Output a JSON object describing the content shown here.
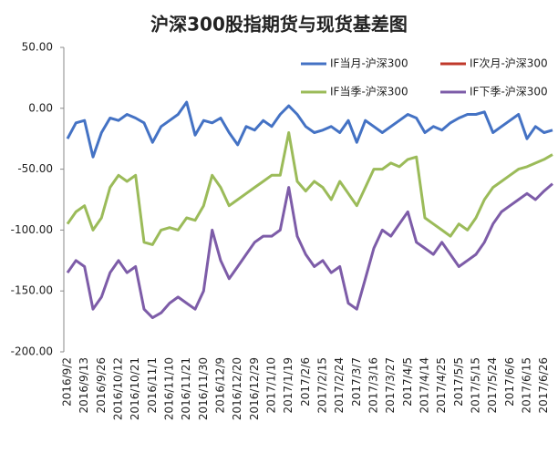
{
  "chart_data": {
    "type": "line",
    "title": "沪深300股指期货与现货基差图",
    "categories": [
      "2016/9/2",
      null,
      "2016/9/13",
      null,
      "2016/9/26",
      null,
      "2016/10/12",
      null,
      "2016/10/21",
      null,
      "2016/11/1",
      null,
      "2016/11/10",
      null,
      "2016/11/21",
      null,
      "2016/11/30",
      null,
      "2016/12/9",
      null,
      "2016/12/20",
      null,
      "2016/12/29",
      null,
      "2017/1/10",
      null,
      "2017/1/19",
      null,
      "2017/2/6",
      null,
      "2017/2/15",
      null,
      "2017/2/24",
      null,
      "2017/3/7",
      null,
      "2017/3/16",
      null,
      "2017/3/27",
      null,
      "2017/4/5",
      null,
      "2017/4/14",
      null,
      "2017/4/25",
      null,
      "2017/5/5",
      null,
      "2017/5/15",
      null,
      "2017/5/24",
      null,
      "2017/6/6",
      null,
      "2017/6/15",
      null,
      "2017/6/26",
      null
    ],
    "series": [
      {
        "name": "IF当月-沪深300",
        "color": "#4472c4",
        "values": [
          -25,
          -12,
          -10,
          -40,
          -20,
          -8,
          -10,
          -5,
          -8,
          -12,
          -28,
          -15,
          -10,
          -5,
          5,
          -22,
          -10,
          -12,
          -8,
          -20,
          -30,
          -15,
          -18,
          -10,
          -15,
          -5,
          2,
          -5,
          -15,
          -20,
          -18,
          -15,
          -20,
          -10,
          -28,
          -10,
          -15,
          -20,
          -15,
          -10,
          -5,
          -8,
          -20,
          -15,
          -18,
          -12,
          -8,
          -5,
          -5,
          -3,
          -20,
          -15,
          -10,
          -5,
          -25,
          -15,
          -20,
          -18
        ]
      },
      {
        "name": "IF次月-沪深300",
        "color": "#c0392b",
        "values": [
          null,
          null,
          null,
          null,
          null,
          null,
          null,
          null,
          null,
          null,
          null,
          null,
          null,
          null,
          null,
          null,
          null,
          null,
          null,
          null,
          null,
          null,
          null,
          null,
          null,
          null,
          null,
          null,
          null,
          null,
          null,
          null,
          null,
          null,
          null,
          null,
          null,
          null,
          null,
          null,
          null,
          null,
          null,
          null,
          null,
          null,
          null,
          null,
          null,
          null,
          null,
          null,
          null,
          null,
          null,
          null,
          null,
          null
        ]
      },
      {
        "name": "IF当季-沪深300",
        "color": "#9bbb59",
        "values": [
          -95,
          -85,
          -80,
          -100,
          -90,
          -65,
          -55,
          -60,
          -55,
          -110,
          -112,
          -100,
          -98,
          -100,
          -90,
          -92,
          -80,
          -55,
          -65,
          -80,
          -75,
          -70,
          -65,
          -60,
          -55,
          -55,
          -20,
          -60,
          -68,
          -60,
          -65,
          -75,
          -60,
          -70,
          -80,
          -65,
          -50,
          -50,
          -45,
          -48,
          -42,
          -40,
          -90,
          -95,
          -100,
          -105,
          -95,
          -100,
          -90,
          -75,
          -65,
          -60,
          -55,
          -50,
          -48,
          -45,
          -42,
          -38
        ]
      },
      {
        "name": "IF下季-沪深300",
        "color": "#7d5ca8",
        "values": [
          -135,
          -125,
          -130,
          -165,
          -155,
          -135,
          -125,
          -135,
          -130,
          -165,
          -172,
          -168,
          -160,
          -155,
          -160,
          -165,
          -150,
          -100,
          -125,
          -140,
          -130,
          -120,
          -110,
          -105,
          -105,
          -100,
          -65,
          -105,
          -120,
          -130,
          -125,
          -135,
          -130,
          -160,
          -165,
          -140,
          -115,
          -100,
          -105,
          -95,
          -85,
          -110,
          -115,
          -120,
          -110,
          -120,
          -130,
          -125,
          -120,
          -110,
          -95,
          -85,
          -80,
          -75,
          -70,
          -75,
          -68,
          -62
        ]
      }
    ],
    "ylim": [
      -200,
      50
    ],
    "yticks": [
      {
        "value": 50,
        "label": "50.00"
      },
      {
        "value": 0,
        "label": "0.00"
      },
      {
        "value": -50,
        "label": "-50.00"
      },
      {
        "value": -100,
        "label": "-100.00"
      },
      {
        "value": -150,
        "label": "-150.00"
      },
      {
        "value": -200,
        "label": "-200.00"
      }
    ],
    "grid": false
  }
}
